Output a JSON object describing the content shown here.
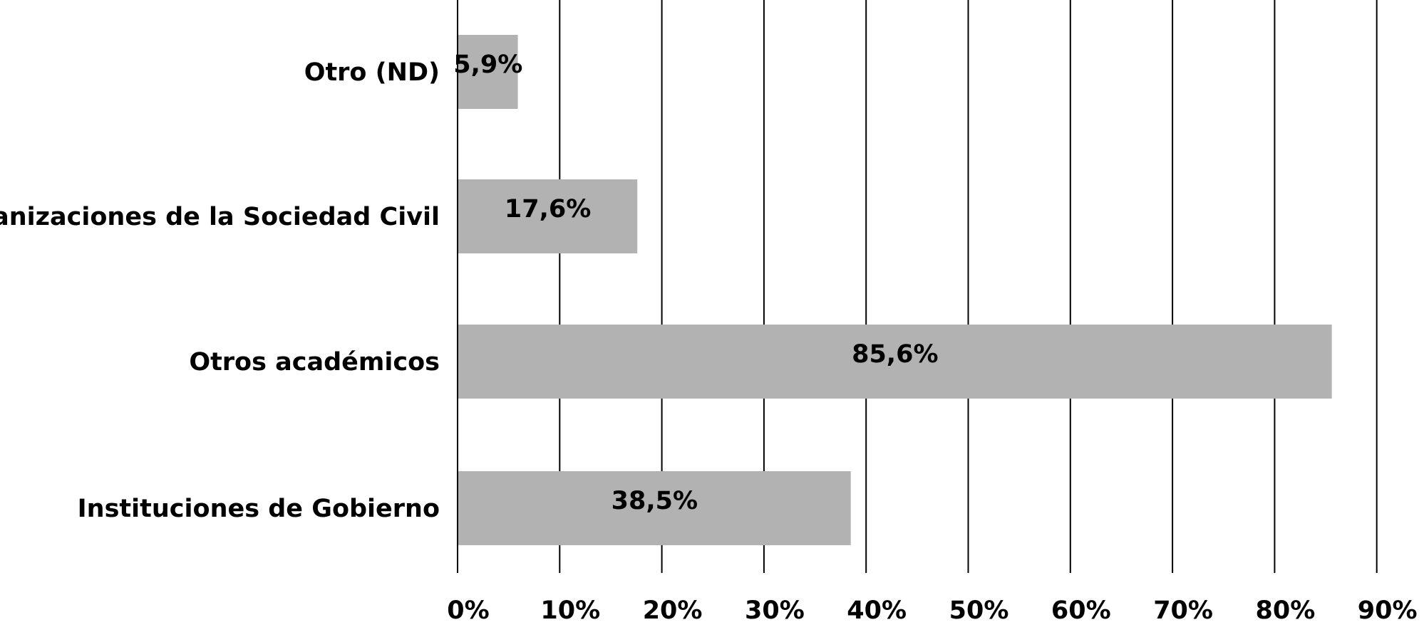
{
  "chart_data": {
    "type": "bar",
    "orientation": "horizontal",
    "categories": [
      "Otro (ND)",
      "Organizaciones de la Sociedad Civil",
      "Otros académicos",
      "Instituciones de Gobierno"
    ],
    "values": [
      5.9,
      17.6,
      85.6,
      38.5
    ],
    "data_labels": [
      "5,9%",
      "17,6%",
      "85,6%",
      "38,5%"
    ],
    "x_ticks": [
      "0%",
      "10%",
      "20%",
      "30%",
      "40%",
      "50%",
      "60%",
      "70%",
      "80%",
      "90%"
    ],
    "xlim": [
      0,
      90
    ],
    "title": "",
    "xlabel": "",
    "ylabel": "",
    "grid": "vertical",
    "legend": "none",
    "colors": {
      "bar": "#b2b2b2",
      "grid": "#000000",
      "text": "#000000"
    }
  }
}
